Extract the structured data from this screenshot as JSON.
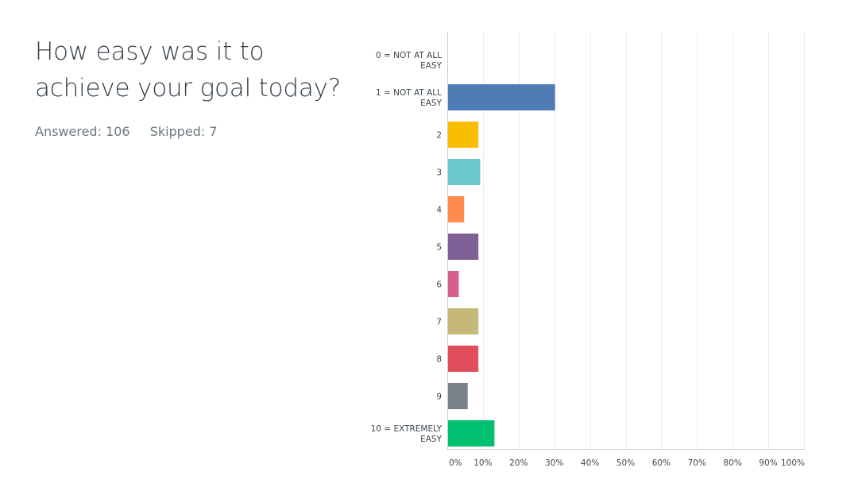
{
  "question": {
    "title": "How easy was it to achieve your goal today?",
    "answered_label": "Answered:",
    "answered_count": "106",
    "skipped_label": "Skipped:",
    "skipped_count": "7"
  },
  "chart_data": {
    "type": "bar",
    "orientation": "horizontal",
    "categories": [
      "0 = NOT AT ALL EASY",
      "1 = NOT AT ALL EASY",
      "2",
      "3",
      "4",
      "5",
      "6",
      "7",
      "8",
      "9",
      "10 = EXTREMELY EASY"
    ],
    "category_lines": [
      [
        "0 = NOT AT ALL",
        "EASY"
      ],
      [
        "1 = NOT AT ALL",
        "EASY"
      ],
      [
        "2"
      ],
      [
        "3"
      ],
      [
        "4"
      ],
      [
        "5"
      ],
      [
        "6"
      ],
      [
        "7"
      ],
      [
        "8"
      ],
      [
        "9"
      ],
      [
        "10 = EXTREMELY",
        "EASY"
      ]
    ],
    "values": [
      0,
      30,
      8.5,
      9,
      4.5,
      8.5,
      3,
      8.5,
      8.5,
      5.5,
      13
    ],
    "colors": [
      "#507cb6",
      "#507cb6",
      "#f9be00",
      "#6bc8cd",
      "#ff8b4f",
      "#7f6197",
      "#d65f8e",
      "#c6b879",
      "#e04e5c",
      "#78808a",
      "#00bf6f"
    ],
    "xlim": [
      0,
      100
    ],
    "xticks": [
      0,
      10,
      20,
      30,
      40,
      50,
      60,
      70,
      80,
      90,
      100
    ],
    "xtick_labels": [
      "0%",
      "10%",
      "20%",
      "30%",
      "40%",
      "50%",
      "60%",
      "70%",
      "80%",
      "90%",
      "100%"
    ],
    "grid": true,
    "title": "",
    "xlabel": "",
    "ylabel": ""
  }
}
